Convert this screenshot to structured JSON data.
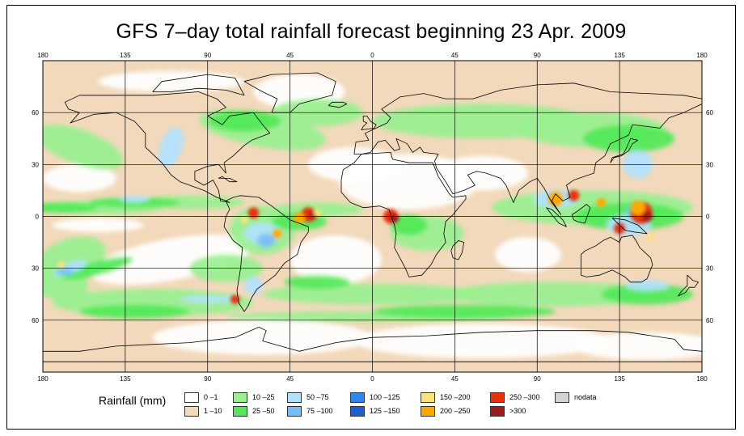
{
  "title": "GFS 7–day total rainfall forecast beginning 23 Apr. 2009",
  "map": {
    "lon_ticks_top": [
      "180",
      "135",
      "90",
      "45",
      "0",
      "45",
      "90",
      "135",
      "180"
    ],
    "lon_ticks_bottom": [
      "180",
      "135",
      "90",
      "45",
      "0",
      "45",
      "90",
      "135",
      "180"
    ],
    "lat_ticks_left": [
      "60",
      "30",
      "0",
      "30",
      "60"
    ],
    "lat_ticks_right": [
      "60",
      "30",
      "0",
      "30",
      "60"
    ],
    "lon_values": [
      -180,
      -135,
      -90,
      -45,
      0,
      45,
      90,
      135,
      180
    ],
    "lat_values": [
      60,
      30,
      0,
      -30,
      -60
    ],
    "lon_range": [
      -180,
      180
    ],
    "lat_range": [
      -90,
      90
    ],
    "projection": "equirectangular",
    "grid": true
  },
  "legend": {
    "title": "Rainfall (mm)",
    "items": [
      {
        "label": "0 –1",
        "color": "#ffffff"
      },
      {
        "label": "1 –10",
        "color": "#f2d9bb"
      },
      {
        "label": "10 –25",
        "color": "#98f08f"
      },
      {
        "label": "25 –50",
        "color": "#52e859"
      },
      {
        "label": "50 –75",
        "color": "#b0e2ff"
      },
      {
        "label": "75 –100",
        "color": "#76bcf7"
      },
      {
        "label": "100 –125",
        "color": "#2e86ee"
      },
      {
        "label": "125 –150",
        "color": "#1d5fd0"
      },
      {
        "label": "150 –200",
        "color": "#ffe27a"
      },
      {
        "label": "200 –250",
        "color": "#ffa800"
      },
      {
        "label": "250 –300",
        "color": "#e8300c"
      },
      {
        "label": ">300",
        "color": "#a01c1c"
      },
      {
        "label": "nodata",
        "color": "#d3d3d3"
      }
    ]
  }
}
